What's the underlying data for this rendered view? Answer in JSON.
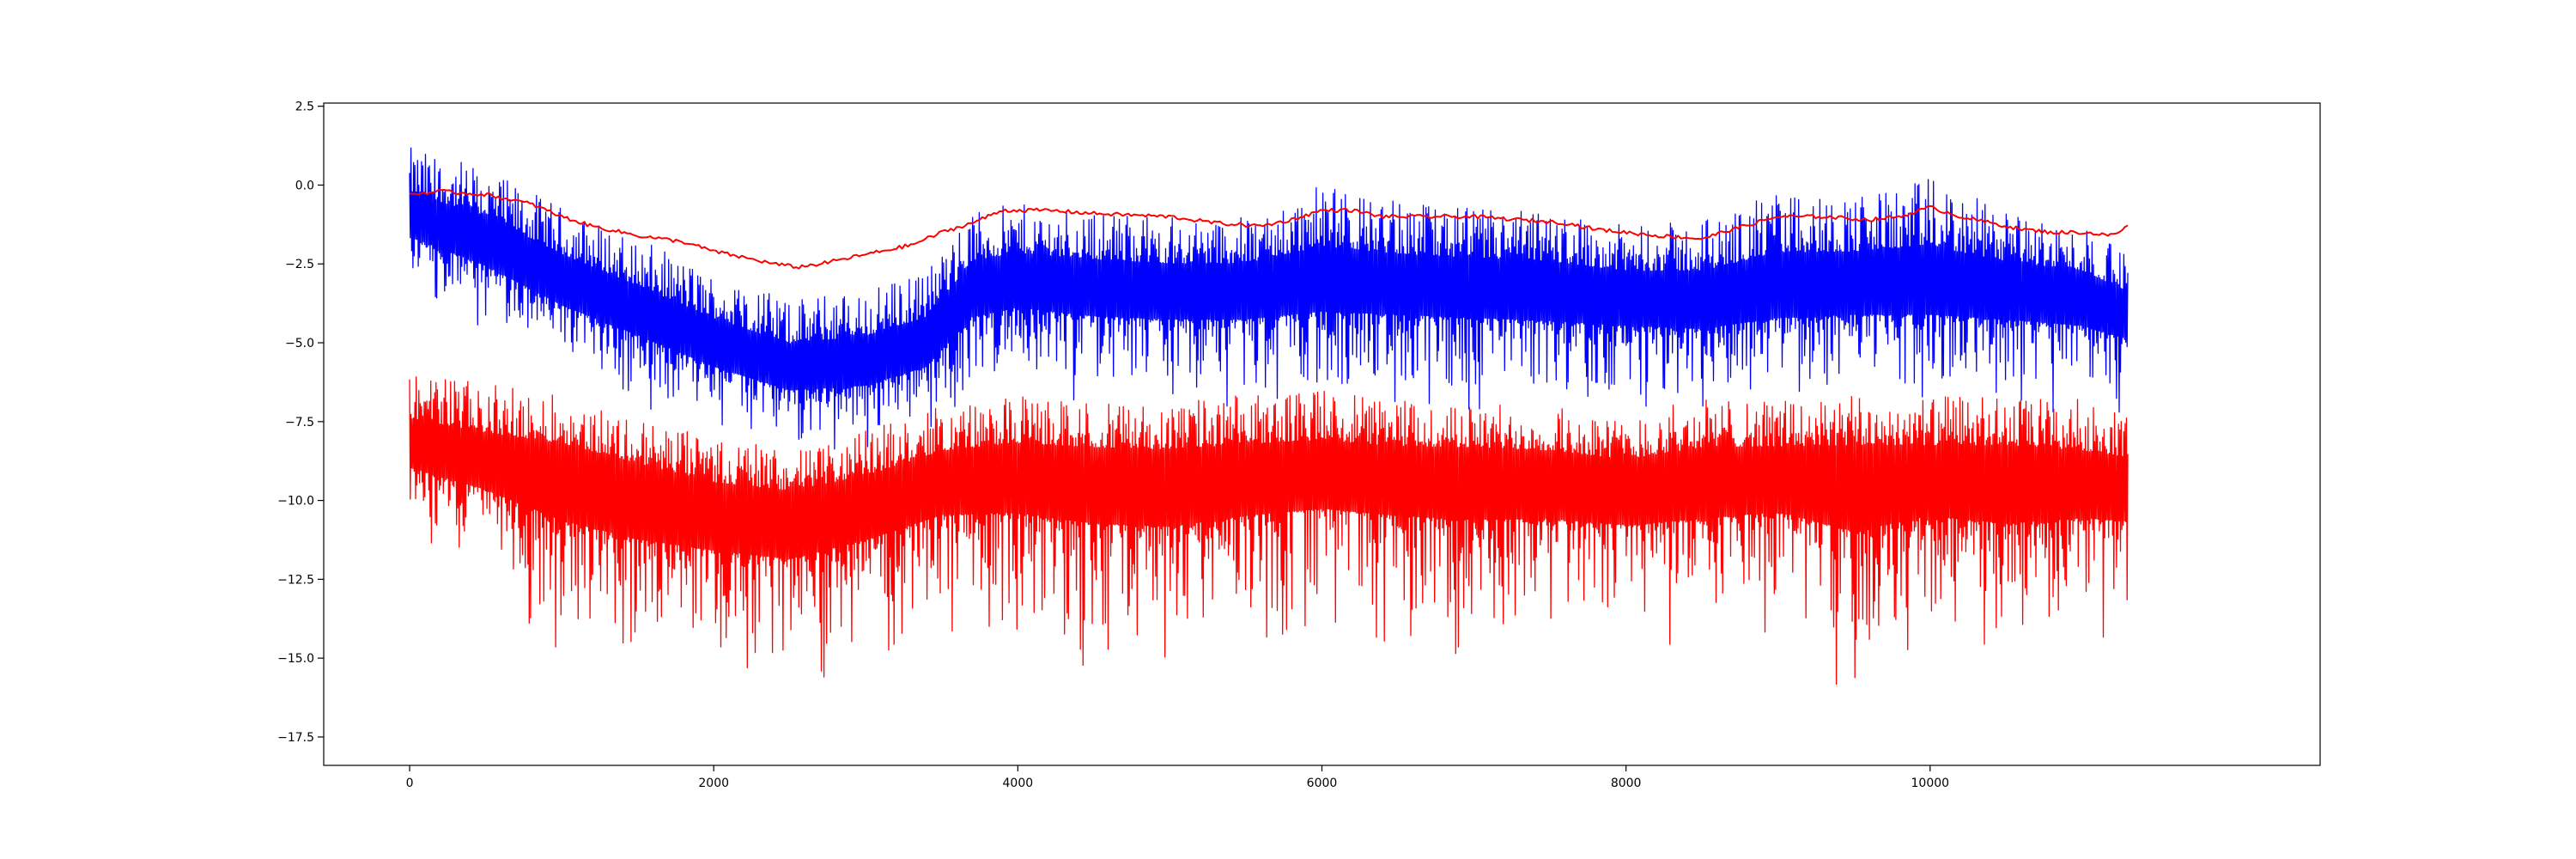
{
  "chart_data": {
    "type": "line",
    "title": "",
    "xlabel": "",
    "ylabel": "",
    "xlim": [
      -565,
      12565
    ],
    "ylim": [
      -18.4,
      2.6
    ],
    "x_ticks": [
      0,
      2000,
      4000,
      6000,
      8000,
      10000
    ],
    "x_tick_labels": [
      "0",
      "2000",
      "4000",
      "6000",
      "8000",
      "10000"
    ],
    "y_ticks": [
      2.5,
      0.0,
      -2.5,
      -5.0,
      -7.5,
      -10.0,
      -12.5,
      -15.0,
      -17.5
    ],
    "y_tick_labels": [
      "2.5",
      "0.0",
      "−2.5",
      "−5.0",
      "−7.5",
      "−10.0",
      "−12.5",
      "−15.0",
      "−17.5"
    ],
    "grid": false,
    "legend": "none",
    "series": [
      {
        "color": "#0000ff",
        "style": "noisy",
        "x": [
          0,
          500,
          1000,
          1500,
          2000,
          2500,
          3000,
          3400,
          3700,
          4000,
          4500,
          5000,
          5500,
          6000,
          6500,
          7000,
          7500,
          8000,
          8500,
          9000,
          9500,
          10000,
          10500,
          11000,
          11300
        ],
        "center": [
          -1.0,
          -1.8,
          -3.0,
          -4.0,
          -5.0,
          -5.8,
          -5.6,
          -5.0,
          -3.3,
          -3.0,
          -3.2,
          -3.3,
          -3.3,
          -3.0,
          -3.1,
          -3.2,
          -3.3,
          -3.5,
          -3.6,
          -3.2,
          -3.1,
          -3.1,
          -3.3,
          -3.5,
          -4.0
        ],
        "spread_down": [
          2.5,
          3.0,
          3.2,
          3.0,
          3.0,
          2.8,
          3.0,
          3.0,
          3.5,
          3.5,
          3.8,
          3.8,
          3.8,
          4.0,
          4.0,
          4.0,
          4.0,
          3.8,
          3.8,
          4.0,
          4.0,
          4.0,
          3.8,
          3.8,
          3.5
        ],
        "spread_up": [
          2.2,
          2.3,
          2.3,
          2.3,
          2.2,
          2.2,
          2.3,
          2.3,
          2.5,
          2.4,
          2.4,
          2.3,
          2.3,
          3.0,
          2.6,
          2.5,
          2.5,
          2.2,
          2.5,
          3.0,
          2.8,
          3.3,
          2.5,
          2.2,
          1.8
        ]
      },
      {
        "color": "#ff0000",
        "style": "noisy",
        "x": [
          0,
          500,
          1000,
          1500,
          2000,
          2500,
          3000,
          3500,
          4000,
          4500,
          5000,
          5500,
          6000,
          6500,
          7000,
          7500,
          8000,
          8500,
          9000,
          9500,
          10000,
          10500,
          11000,
          11300
        ],
        "center": [
          -8.2,
          -8.7,
          -9.0,
          -9.6,
          -10.2,
          -10.4,
          -10.0,
          -9.2,
          -9.0,
          -9.1,
          -9.2,
          -9.1,
          -9.0,
          -9.1,
          -9.1,
          -9.2,
          -9.4,
          -9.2,
          -9.1,
          -9.1,
          -9.1,
          -9.1,
          -9.3,
          -9.4
        ],
        "spread_down": [
          3.0,
          3.8,
          6.5,
          6.5,
          5.5,
          5.8,
          5.0,
          5.0,
          5.5,
          6.5,
          6.5,
          5.5,
          5.0,
          5.5,
          6.0,
          5.5,
          5.5,
          5.5,
          5.0,
          7.5,
          5.5,
          6.5,
          5.0,
          5.0
        ],
        "spread_up": [
          2.3,
          2.4,
          2.3,
          2.2,
          2.2,
          2.0,
          2.2,
          2.2,
          2.3,
          2.2,
          2.3,
          2.5,
          2.6,
          2.3,
          2.2,
          2.2,
          2.0,
          2.5,
          2.3,
          2.4,
          2.4,
          2.4,
          2.5,
          2.2
        ]
      },
      {
        "color": "#ff0000",
        "style": "smooth",
        "x": [
          0,
          200,
          500,
          800,
          1000,
          1200,
          1500,
          1800,
          2000,
          2200,
          2400,
          2550,
          2700,
          2900,
          3100,
          3300,
          3500,
          3700,
          3900,
          4200,
          4500,
          5000,
          5300,
          5600,
          5800,
          6000,
          6200,
          6400,
          6700,
          7000,
          7300,
          7600,
          7800,
          8000,
          8200,
          8500,
          8700,
          9000,
          9300,
          9600,
          9800,
          10000,
          10200,
          10400,
          10600,
          10800,
          11000,
          11200,
          11300
        ],
        "y": [
          -0.3,
          -0.2,
          -0.3,
          -0.6,
          -1.0,
          -1.3,
          -1.6,
          -1.8,
          -2.1,
          -2.3,
          -2.5,
          -2.6,
          -2.5,
          -2.3,
          -2.1,
          -1.9,
          -1.5,
          -1.2,
          -0.8,
          -0.8,
          -0.9,
          -1.0,
          -1.2,
          -1.3,
          -1.1,
          -0.8,
          -0.8,
          -1.0,
          -1.0,
          -1.0,
          -1.1,
          -1.2,
          -1.4,
          -1.5,
          -1.6,
          -1.7,
          -1.4,
          -1.0,
          -1.0,
          -1.1,
          -1.0,
          -0.7,
          -1.0,
          -1.2,
          -1.4,
          -1.5,
          -1.5,
          -1.6,
          -1.3
        ]
      }
    ]
  }
}
